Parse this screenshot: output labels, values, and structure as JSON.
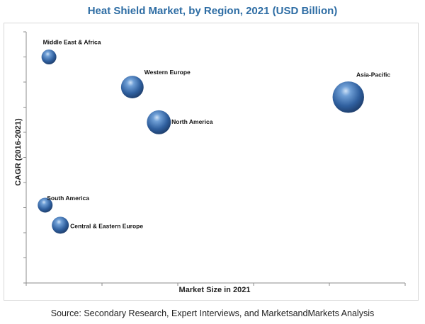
{
  "title": "Heat Shield Market, by Region, 2021 (USD Billion)",
  "source": "Source: Secondary Research, Expert Interviews, and MarketsandMarkets Analysis",
  "colors": {
    "bubble": "#2f5f9e",
    "title": "#2e6da4",
    "axis": "#8c8c8c"
  },
  "chart_data": {
    "type": "scatter",
    "variant": "bubble",
    "xlabel": "Market Size in 2021",
    "ylabel": "CAGR (2016-2021)",
    "xlim": [
      0,
      100
    ],
    "ylim": [
      0,
      100
    ],
    "grid": false,
    "legend": "none",
    "points": [
      {
        "name": "Middle East & Africa",
        "x": 6,
        "y": 90,
        "size": 1.0
      },
      {
        "name": "Western Europe",
        "x": 28,
        "y": 78,
        "size": 2.3
      },
      {
        "name": "North America",
        "x": 35,
        "y": 64,
        "size": 2.6
      },
      {
        "name": "Asia-Pacific",
        "x": 85,
        "y": 74,
        "size": 4.3
      },
      {
        "name": "South America",
        "x": 5,
        "y": 31,
        "size": 1.0
      },
      {
        "name": "Central & Eastern Europe",
        "x": 9,
        "y": 23,
        "size": 1.3
      }
    ]
  }
}
